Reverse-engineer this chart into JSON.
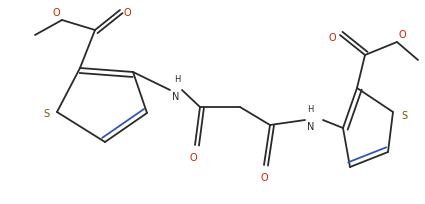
{
  "bg": "#ffffff",
  "lc": "#2a2a2a",
  "Sc": "#7a5800",
  "Oc": "#cc2200",
  "Nc": "#2a2a2a",
  "lw": 1.3,
  "fs": 7.0,
  "figsize": [
    4.25,
    2.04
  ],
  "dpi": 100,
  "xlim": [
    0,
    425
  ],
  "ylim": [
    0,
    204
  ]
}
